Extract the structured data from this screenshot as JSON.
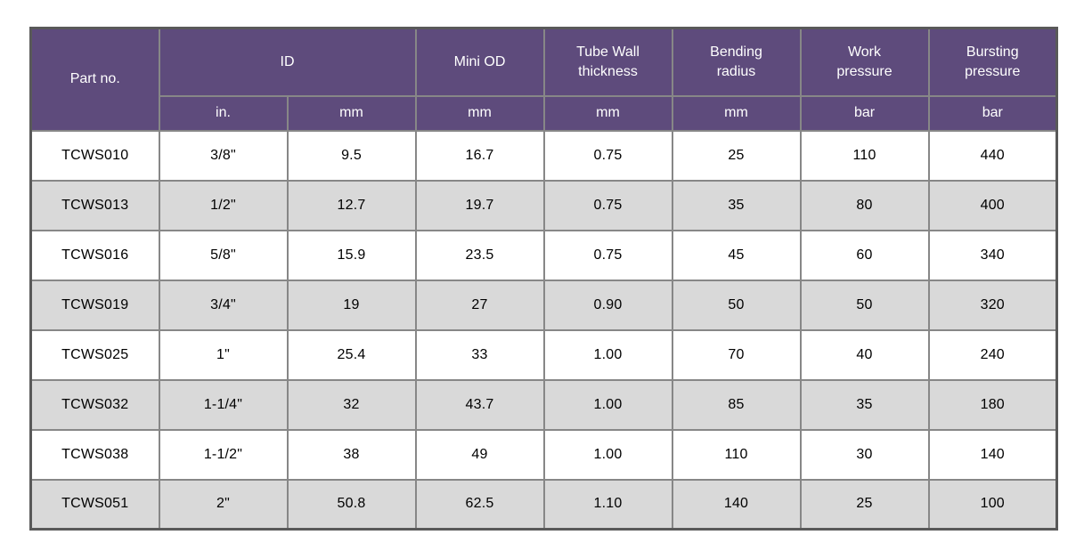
{
  "table": {
    "headers": {
      "part_no": "Part no.",
      "id": "ID",
      "id_unit_in": "in.",
      "id_unit_mm": "mm",
      "mini_od": "Mini OD",
      "mini_od_unit": "mm",
      "tube_wall": "Tube Wall\nthickness",
      "tube_wall_unit": "mm",
      "bending_radius": "Bending\nradius",
      "bending_radius_unit": "mm",
      "work_pressure": "Work\npressure",
      "work_pressure_unit": "bar",
      "bursting_pressure": "Bursting\npressure",
      "bursting_pressure_unit": "bar"
    },
    "rows": [
      [
        "TCWS010",
        "3/8\"",
        "9.5",
        "16.7",
        "0.75",
        "25",
        "110",
        "440"
      ],
      [
        "TCWS013",
        "1/2\"",
        "12.7",
        "19.7",
        "0.75",
        "35",
        "80",
        "400"
      ],
      [
        "TCWS016",
        "5/8\"",
        "15.9",
        "23.5",
        "0.75",
        "45",
        "60",
        "340"
      ],
      [
        "TCWS019",
        "3/4\"",
        "19",
        "27",
        "0.90",
        "50",
        "50",
        "320"
      ],
      [
        "TCWS025",
        "1\"",
        "25.4",
        "33",
        "1.00",
        "70",
        "40",
        "240"
      ],
      [
        "TCWS032",
        "1-1/4\"",
        "32",
        "43.7",
        "1.00",
        "85",
        "35",
        "180"
      ],
      [
        "TCWS038",
        "1-1/2\"",
        "38",
        "49",
        "1.00",
        "110",
        "30",
        "140"
      ],
      [
        "TCWS051",
        "2\"",
        "50.8",
        "62.5",
        "1.10",
        "140",
        "25",
        "100"
      ]
    ],
    "colors": {
      "header_bg": "#5e4b7c",
      "header_text": "#ffffff",
      "row_even_bg": "#ffffff",
      "row_odd_bg": "#d9d9d9",
      "grid_border": "#878787",
      "outer_border": "#595959",
      "body_text": "#000000"
    }
  }
}
